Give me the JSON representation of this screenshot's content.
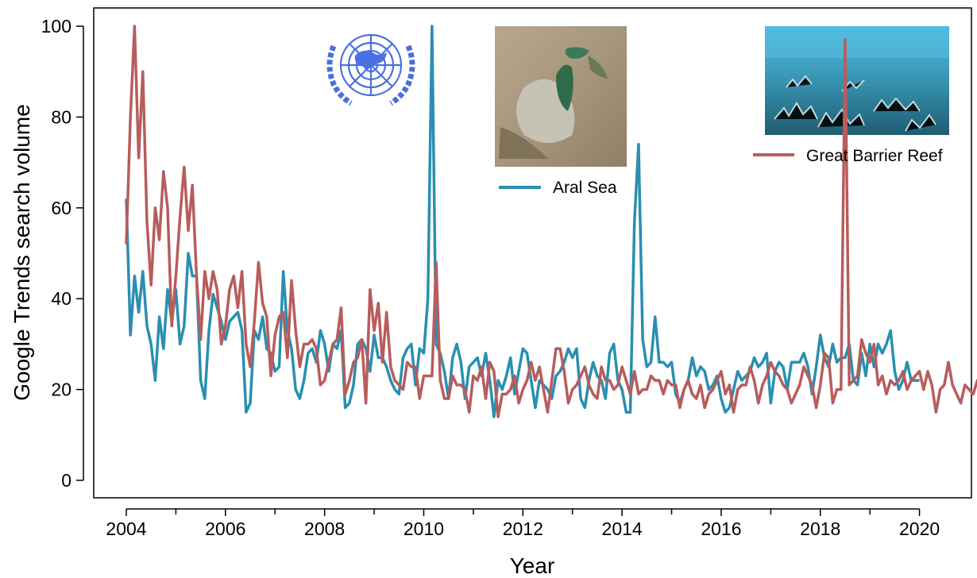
{
  "chart_data": {
    "type": "line",
    "title": "",
    "xlabel": "Year",
    "ylabel": "Google Trends search volume",
    "xlim": [
      2004,
      2021
    ],
    "ylim": [
      0,
      100
    ],
    "x_ticks": [
      "2004",
      "2006",
      "2008",
      "2010",
      "2012",
      "2014",
      "2016",
      "2018",
      "2020"
    ],
    "y_ticks": [
      "0",
      "20",
      "40",
      "60",
      "80",
      "100"
    ],
    "grid": false,
    "series": [
      {
        "name": "Aral Sea",
        "color": "#2a8fb0",
        "x_start": 2004,
        "x_step_years": 0.0833333,
        "values": [
          62,
          32,
          45,
          37,
          46,
          34,
          30,
          22,
          36,
          29,
          42,
          35,
          42,
          30,
          34,
          50,
          45,
          45,
          22,
          18,
          33,
          41,
          38,
          35,
          31,
          35,
          36,
          37,
          33,
          15,
          17,
          33,
          31,
          36,
          29,
          28,
          24,
          25,
          46,
          33,
          29,
          20,
          18,
          22,
          28,
          29,
          26,
          33,
          30,
          24,
          30,
          29,
          33,
          16,
          17,
          21,
          30,
          31,
          29,
          24,
          32,
          27,
          27,
          25,
          22,
          20,
          19,
          27,
          29,
          30,
          21,
          29,
          28,
          40,
          100,
          30,
          28,
          24,
          18,
          27,
          30,
          26,
          18,
          25,
          26,
          27,
          23,
          28,
          22,
          14,
          22,
          20,
          23,
          27,
          19,
          24,
          29,
          28,
          22,
          16,
          22,
          21,
          20,
          18,
          23,
          24,
          26,
          29,
          27,
          29,
          18,
          16,
          22,
          26,
          23,
          22,
          18,
          28,
          30,
          22,
          20,
          15,
          15,
          57,
          74,
          31,
          25,
          26,
          36,
          26,
          26,
          25,
          26,
          19,
          17,
          20,
          22,
          27,
          23,
          25,
          24,
          20,
          21,
          23,
          18,
          15,
          16,
          20,
          24,
          22,
          23,
          24,
          27,
          25,
          26,
          28,
          17,
          24,
          26,
          25,
          20,
          26,
          26,
          26,
          28,
          25,
          19,
          25,
          32,
          27,
          25,
          30,
          26,
          27,
          27,
          30,
          22,
          21,
          28,
          23,
          30,
          25,
          30,
          28,
          30,
          33,
          24,
          20,
          22,
          26,
          22,
          22,
          22
        ]
      },
      {
        "name": "Great Barrier Reef",
        "color": "#b85c5c",
        "x_start": 2004,
        "x_step_years": 0.0833333,
        "values": [
          52,
          80,
          100,
          71,
          90,
          57,
          43,
          60,
          53,
          68,
          60,
          34,
          45,
          58,
          69,
          55,
          65,
          45,
          31,
          46,
          40,
          46,
          42,
          30,
          34,
          42,
          45,
          38,
          46,
          30,
          25,
          35,
          48,
          39,
          36,
          23,
          32,
          36,
          37,
          27,
          44,
          33,
          25,
          30,
          30,
          31,
          29,
          21,
          22,
          26,
          30,
          31,
          38,
          19,
          22,
          26,
          27,
          31,
          17,
          42,
          33,
          39,
          26,
          37,
          25,
          22,
          21,
          20,
          26,
          25,
          25,
          18,
          23,
          23,
          23,
          48,
          22,
          18,
          18,
          23,
          21,
          21,
          20,
          15,
          23,
          22,
          25,
          18,
          26,
          24,
          14,
          19,
          19,
          20,
          23,
          17,
          20,
          22,
          26,
          22,
          25,
          20,
          15,
          22,
          29,
          29,
          24,
          17,
          20,
          21,
          23,
          25,
          21,
          19,
          18,
          25,
          22,
          22,
          20,
          21,
          25,
          22,
          19,
          24,
          19,
          20,
          20,
          23,
          22,
          22,
          19,
          22,
          21,
          21,
          16,
          20,
          22,
          19,
          18,
          21,
          16,
          19,
          20,
          22,
          24,
          19,
          21,
          15,
          20,
          21,
          21,
          25,
          22,
          17,
          21,
          23,
          26,
          24,
          23,
          21,
          20,
          17,
          19,
          21,
          25,
          23,
          21,
          16,
          21,
          28,
          27,
          17,
          20,
          20,
          97,
          21,
          22,
          23,
          31,
          28,
          26,
          30,
          21,
          23,
          19,
          22,
          21,
          22,
          24,
          20,
          22,
          23,
          24,
          20,
          24,
          21,
          15,
          20,
          21,
          26,
          21,
          19,
          17,
          21,
          20,
          19,
          22,
          21,
          17,
          19,
          17,
          19,
          18,
          17,
          20,
          13,
          18,
          16,
          13
        ]
      }
    ],
    "legend": [
      {
        "label": "Aral Sea",
        "color": "#2a8fb0",
        "placement": "top-center"
      },
      {
        "label": "Great Barrier Reef",
        "color": "#b85c5c",
        "placement": "top-right"
      }
    ],
    "inset_images": [
      {
        "name": "united-nations-emblem",
        "description": "UN emblem"
      },
      {
        "name": "aral-sea-satellite-photo"
      },
      {
        "name": "great-barrier-reef-photo"
      }
    ]
  }
}
